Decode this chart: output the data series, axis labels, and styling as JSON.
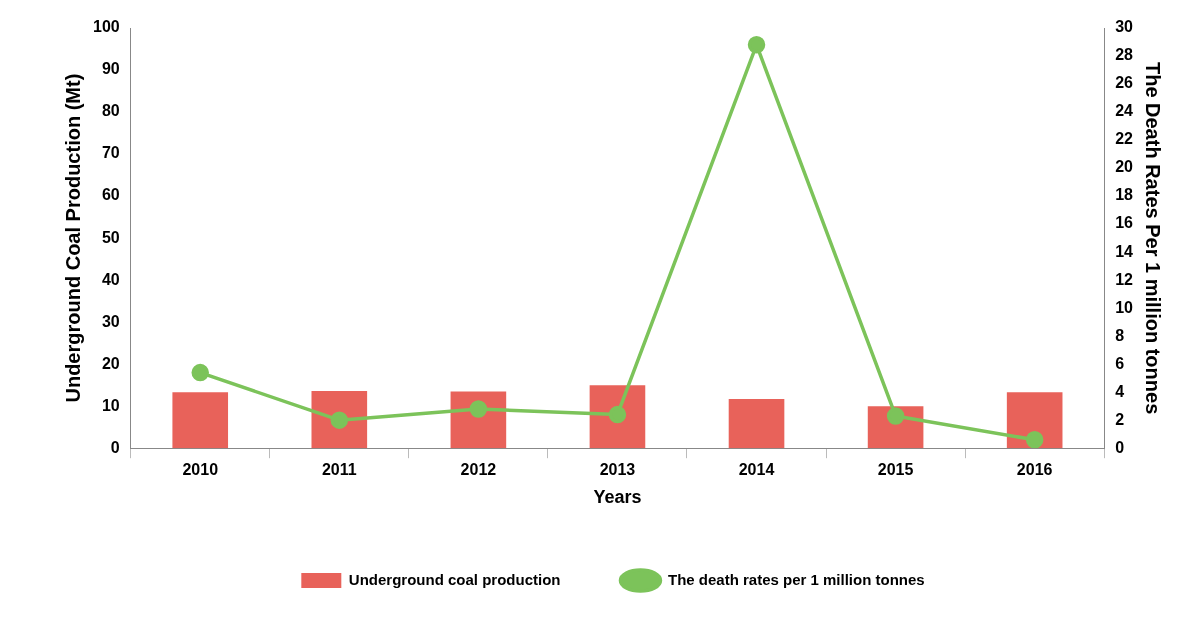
{
  "chart_data": {
    "type": "bar",
    "xlabel": "Years",
    "ylabel": "Underground Coal Production (Mt)",
    "y2label": "The Death Rates Per 1 million tonnes",
    "categories": [
      "2010",
      "2011",
      "2012",
      "2013",
      "2014",
      "2015",
      "2016"
    ],
    "series": [
      {
        "name": "Underground coal production",
        "color": "#e8625a",
        "values": [
          13.3,
          13.6,
          13.5,
          15,
          11.7,
          10,
          13.3
        ]
      },
      {
        "name": "The death rates per 1 million tonnes",
        "type": "line",
        "axis": "y2",
        "color": "#7cc35a",
        "marker": "circle",
        "values": [
          5.4,
          2.0,
          2.8,
          2.4,
          28.8,
          2.3,
          0.6
        ]
      }
    ],
    "ylim": [
      0,
      100
    ],
    "yticks": [
      0,
      10,
      20,
      30,
      40,
      50,
      60,
      70,
      80,
      90,
      100
    ],
    "y2lim": [
      0,
      30
    ],
    "y2ticks": [
      0,
      2,
      4,
      6,
      8,
      10,
      12,
      14,
      16,
      18,
      20,
      22,
      24,
      26,
      28,
      30
    ],
    "grid": false,
    "legend": "bottom"
  }
}
